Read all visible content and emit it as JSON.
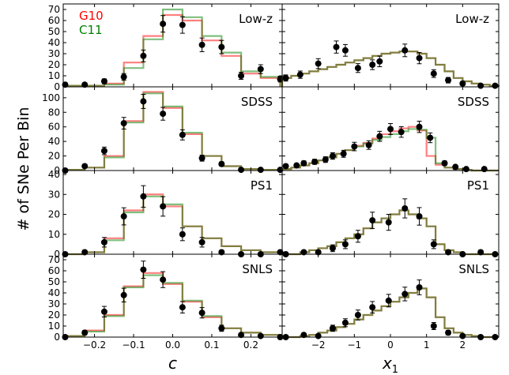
{
  "figure": {
    "ylabel": "# of SNe Per Bin",
    "colors": {
      "g10": "#ff0000",
      "c11": "#008000",
      "overlap": "#8a7a3a",
      "points": "#000000"
    }
  },
  "chart_data": [
    {
      "type": "histogram",
      "row": 0,
      "col": 0,
      "panel_label": "Low-z",
      "xlim": [
        -0.28,
        0.28
      ],
      "ylim": [
        0,
        75
      ],
      "yticks": [
        0,
        10,
        20,
        30,
        40,
        50,
        60,
        70
      ],
      "xticks": [
        -0.2,
        -0.1,
        0.0,
        0.1,
        0.2
      ],
      "xticklabels": [],
      "bin_edges": [
        -0.275,
        -0.225,
        -0.175,
        -0.125,
        -0.075,
        -0.025,
        0.025,
        0.075,
        0.125,
        0.175,
        0.225,
        0.275
      ],
      "series": [
        {
          "name": "G10",
          "values": [
            1,
            1,
            3,
            22,
            46,
            65,
            60,
            42,
            28,
            12,
            8
          ]
        },
        {
          "name": "C11",
          "values": [
            1,
            1,
            2,
            17,
            43,
            70,
            63,
            46,
            31,
            14,
            9
          ]
        }
      ],
      "legend": [
        "G10",
        "C11"
      ],
      "data": {
        "x": [
          -0.275,
          -0.225,
          -0.175,
          -0.125,
          -0.075,
          -0.025,
          0.025,
          0.075,
          0.125,
          0.175,
          0.225,
          0.275
        ],
        "y": [
          2,
          2,
          5,
          9,
          28,
          57,
          56,
          38,
          36,
          10,
          16,
          7
        ],
        "err": [
          1.5,
          1.5,
          2.2,
          3,
          5.3,
          7.5,
          7.5,
          6.2,
          6,
          3.2,
          4,
          2.6
        ]
      }
    },
    {
      "type": "histogram",
      "row": 0,
      "col": 1,
      "panel_label": "Low-z",
      "xlim": [
        -3,
        3
      ],
      "ylim": [
        0,
        75
      ],
      "yticks": [
        0,
        10,
        20,
        30,
        40,
        50,
        60,
        70
      ],
      "xticks": [
        -2,
        -1,
        0,
        1,
        2
      ],
      "xticklabels": [],
      "bin_edges": [
        -3,
        -2.75,
        -2.5,
        -2.25,
        -2,
        -1.75,
        -1.5,
        -1.25,
        -1,
        -0.75,
        -0.5,
        -0.25,
        0,
        0.25,
        0.5,
        0.75,
        1,
        1.25,
        1.5,
        1.75,
        2,
        2.25,
        2.5,
        2.75,
        3
      ],
      "series": [
        {
          "name": "G10",
          "values": [
            8,
            10,
            12,
            14,
            16,
            18,
            20,
            22,
            24,
            26,
            28,
            30,
            31,
            32,
            32,
            30,
            26,
            20,
            14,
            8,
            5,
            3,
            2,
            1
          ]
        },
        {
          "name": "C11",
          "values": [
            8,
            10,
            12,
            14,
            16,
            18,
            20,
            22,
            24,
            26,
            28,
            30,
            31,
            32,
            32,
            30,
            26,
            20,
            14,
            8,
            5,
            3,
            2,
            1
          ]
        }
      ],
      "data": {
        "x": [
          -2.9,
          -2.5,
          -2.0,
          -1.5,
          -1.25,
          -0.9,
          -0.5,
          -0.3,
          0.4,
          0.8,
          1.2,
          1.6,
          2.0,
          2.5,
          2.9
        ],
        "y": [
          8,
          11,
          21,
          36,
          33,
          17,
          20,
          23,
          33,
          26,
          12,
          6,
          3,
          1,
          1
        ],
        "err": [
          2.8,
          3.3,
          4.5,
          5.5,
          5.3,
          4,
          4.4,
          4.8,
          5.7,
          5.1,
          3.5,
          2.5,
          1.8,
          1,
          1
        ]
      }
    },
    {
      "type": "histogram",
      "row": 1,
      "col": 0,
      "panel_label": "SDSS",
      "xlim": [
        -0.28,
        0.28
      ],
      "ylim": [
        0,
        115
      ],
      "yticks": [
        0,
        20,
        40,
        60,
        80,
        100
      ],
      "xticks": [
        -0.2,
        -0.1,
        0.0,
        0.1,
        0.2
      ],
      "xticklabels": [],
      "bin_edges": [
        -0.275,
        -0.225,
        -0.175,
        -0.125,
        -0.075,
        -0.025,
        0.025,
        0.075,
        0.125,
        0.175,
        0.225,
        0.275
      ],
      "series": [
        {
          "name": "G10",
          "values": [
            1,
            4,
            20,
            68,
            108,
            86,
            50,
            20,
            6,
            2,
            1
          ]
        },
        {
          "name": "C11",
          "values": [
            1,
            4,
            18,
            66,
            106,
            88,
            52,
            20,
            6,
            2,
            1
          ]
        }
      ],
      "data": {
        "x": [
          -0.275,
          -0.225,
          -0.175,
          -0.125,
          -0.075,
          -0.025,
          0.025,
          0.075,
          0.125,
          0.175,
          0.225,
          0.275
        ],
        "y": [
          0,
          6,
          27,
          65,
          95,
          78,
          49,
          17,
          9,
          1,
          1,
          1
        ],
        "err": [
          0.8,
          2.5,
          5.2,
          8,
          9.7,
          8.8,
          7,
          4.1,
          3,
          1,
          1,
          1
        ]
      }
    },
    {
      "type": "histogram",
      "row": 1,
      "col": 1,
      "panel_label": "SDSS",
      "xlim": [
        -3,
        3
      ],
      "ylim": [
        0,
        115
      ],
      "yticks": [
        0,
        20,
        40,
        60,
        80,
        100
      ],
      "xticks": [
        -2,
        -1,
        0,
        1,
        2
      ],
      "xticklabels": [],
      "bin_edges": [
        -3,
        -2.75,
        -2.5,
        -2.25,
        -2,
        -1.75,
        -1.5,
        -1.25,
        -1,
        -0.75,
        -0.5,
        -0.25,
        0,
        0.25,
        0.5,
        0.75,
        1,
        1.25,
        1.5,
        1.75,
        2,
        2.25,
        2.5,
        2.75,
        3
      ],
      "series": [
        {
          "name": "G10",
          "values": [
            2,
            4,
            7,
            10,
            14,
            18,
            23,
            28,
            34,
            38,
            44,
            50,
            54,
            58,
            60,
            55,
            20,
            8,
            4,
            2,
            1,
            0,
            0,
            0
          ]
        },
        {
          "name": "C11",
          "values": [
            2,
            4,
            7,
            10,
            14,
            18,
            23,
            28,
            33,
            37,
            42,
            46,
            50,
            54,
            57,
            56,
            45,
            10,
            4,
            2,
            1,
            0,
            0,
            0
          ]
        }
      ],
      "data": {
        "x": [
          -2.9,
          -2.6,
          -2.4,
          -2.1,
          -1.8,
          -1.6,
          -1.3,
          -1.0,
          -0.6,
          -0.3,
          0.0,
          0.3,
          0.8,
          1.1,
          1.5,
          1.8,
          2.1,
          2.6
        ],
        "y": [
          6,
          7,
          10,
          12,
          15,
          20,
          23,
          33,
          35,
          47,
          57,
          53,
          60,
          45,
          10,
          5,
          2,
          2
        ],
        "err": [
          2.5,
          2.6,
          3.2,
          3.5,
          3.9,
          4.5,
          4.8,
          5.8,
          5.9,
          6.9,
          7.5,
          7.3,
          7.8,
          6.7,
          3.2,
          2.2,
          1.4,
          1.4
        ]
      }
    },
    {
      "type": "histogram",
      "row": 2,
      "col": 0,
      "panel_label": "PS1",
      "xlim": [
        -0.28,
        0.28
      ],
      "ylim": [
        0,
        42
      ],
      "yticks": [
        0,
        10,
        20,
        30,
        40
      ],
      "xticks": [
        -0.2,
        -0.1,
        0.0,
        0.1,
        0.2
      ],
      "xticklabels": [],
      "bin_edges": [
        -0.275,
        -0.225,
        -0.175,
        -0.125,
        -0.075,
        -0.025,
        0.025,
        0.075,
        0.125,
        0.175,
        0.225,
        0.275
      ],
      "series": [
        {
          "name": "G10",
          "values": [
            0,
            1,
            8,
            22,
            30,
            24,
            14,
            8,
            4,
            2,
            1
          ]
        },
        {
          "name": "C11",
          "values": [
            0,
            1,
            7,
            21,
            29,
            25,
            14,
            8,
            4,
            2,
            1
          ]
        }
      ],
      "data": {
        "x": [
          -0.275,
          -0.225,
          -0.175,
          -0.125,
          -0.075,
          -0.025,
          0.025,
          0.075,
          0.125,
          0.175,
          0.225,
          0.275
        ],
        "y": [
          0,
          1,
          6,
          19,
          29,
          24,
          10,
          6,
          1,
          0,
          0,
          1
        ],
        "err": [
          0.5,
          1,
          2.4,
          4.3,
          5.4,
          4.9,
          3.2,
          2.4,
          1,
          0.5,
          0.5,
          1
        ]
      }
    },
    {
      "type": "histogram",
      "row": 2,
      "col": 1,
      "panel_label": "PS1",
      "xlim": [
        -3,
        3
      ],
      "ylim": [
        0,
        42
      ],
      "yticks": [
        0,
        10,
        20,
        30,
        40
      ],
      "xticks": [
        -2,
        -1,
        0,
        1,
        2
      ],
      "xticklabels": [],
      "bin_edges": [
        -3,
        -2.75,
        -2.5,
        -2.25,
        -2,
        -1.75,
        -1.5,
        -1.25,
        -1,
        -0.75,
        -0.5,
        -0.25,
        0,
        0.25,
        0.5,
        0.75,
        1,
        1.25,
        1.5,
        1.75,
        2,
        2.25,
        2.5,
        2.75,
        3
      ],
      "series": [
        {
          "name": "G10",
          "values": [
            0,
            0,
            1,
            2,
            3,
            4,
            6,
            8,
            10,
            13,
            16,
            18,
            20,
            22,
            20,
            18,
            14,
            5,
            2,
            1,
            0,
            0,
            0,
            0
          ]
        },
        {
          "name": "C11",
          "values": [
            0,
            0,
            1,
            2,
            3,
            4,
            6,
            8,
            10,
            13,
            16,
            18,
            20,
            22,
            20,
            18,
            14,
            5,
            2,
            1,
            0,
            0,
            0,
            0
          ]
        }
      ],
      "data": {
        "x": [
          -2.9,
          -2.4,
          -2.0,
          -1.6,
          -1.25,
          -0.9,
          -0.5,
          -0.05,
          0.4,
          0.8,
          1.2,
          1.6,
          2.0,
          2.5,
          2.9
        ],
        "y": [
          0,
          1,
          1,
          3,
          5,
          9,
          17,
          16,
          23,
          19,
          5,
          1,
          0,
          1,
          0
        ],
        "err": [
          0.5,
          1,
          1,
          1.7,
          2.2,
          3,
          4.1,
          4,
          4.8,
          4.4,
          2.2,
          1,
          0.5,
          1,
          0.5
        ]
      }
    },
    {
      "type": "histogram",
      "row": 3,
      "col": 0,
      "panel_label": "SNLS",
      "xlim": [
        -0.28,
        0.28
      ],
      "ylim": [
        0,
        75
      ],
      "yticks": [
        0,
        10,
        20,
        30,
        40,
        50,
        60,
        70
      ],
      "xticks": [
        -0.2,
        -0.1,
        0.0,
        0.1,
        0.2
      ],
      "xticklabels": [
        "−0.2",
        "−0.1",
        "0.0",
        "0.1",
        "0.2"
      ],
      "xlabel": "c",
      "bin_edges": [
        -0.275,
        -0.225,
        -0.175,
        -0.125,
        -0.075,
        -0.025,
        0.025,
        0.075,
        0.125,
        0.175,
        0.225,
        0.275
      ],
      "series": [
        {
          "name": "G10",
          "values": [
            1,
            6,
            20,
            46,
            58,
            48,
            32,
            18,
            8,
            4,
            2
          ]
        },
        {
          "name": "C11",
          "values": [
            1,
            5,
            19,
            45,
            56,
            49,
            33,
            19,
            8,
            4,
            2
          ]
        }
      ],
      "data": {
        "x": [
          -0.275,
          -0.225,
          -0.175,
          -0.125,
          -0.075,
          -0.025,
          0.025,
          0.075,
          0.125,
          0.175,
          0.225,
          0.275
        ],
        "y": [
          0,
          4,
          23,
          38,
          61,
          52,
          27,
          22,
          8,
          2,
          1,
          0
        ],
        "err": [
          0.8,
          2,
          4.8,
          6.2,
          7.8,
          7.2,
          5.2,
          4.7,
          2.8,
          1.4,
          1,
          0.5
        ]
      }
    },
    {
      "type": "histogram",
      "row": 3,
      "col": 1,
      "panel_label": "SNLS",
      "xlim": [
        -3,
        3
      ],
      "ylim": [
        0,
        75
      ],
      "yticks": [
        0,
        10,
        20,
        30,
        40,
        50,
        60,
        70
      ],
      "xticks": [
        -2,
        -1,
        0,
        1,
        2
      ],
      "xticklabels": [
        "−2",
        "−1",
        "0",
        "1",
        "2"
      ],
      "xlabel": "x1",
      "bin_edges": [
        -3,
        -2.75,
        -2.5,
        -2.25,
        -2,
        -1.75,
        -1.5,
        -1.25,
        -1,
        -0.75,
        -0.5,
        -0.25,
        0,
        0.25,
        0.5,
        0.75,
        1,
        1.25,
        1.5,
        1.75,
        2,
        2.25,
        2.5,
        2.75,
        3
      ],
      "series": [
        {
          "name": "G10",
          "values": [
            0,
            0,
            1,
            2,
            4,
            6,
            9,
            12,
            16,
            20,
            24,
            28,
            32,
            36,
            40,
            44,
            36,
            18,
            8,
            4,
            2,
            1,
            0,
            0
          ]
        },
        {
          "name": "C11",
          "values": [
            0,
            0,
            1,
            2,
            4,
            6,
            9,
            12,
            16,
            20,
            24,
            28,
            32,
            36,
            40,
            44,
            36,
            18,
            8,
            4,
            2,
            1,
            0,
            0
          ]
        }
      ],
      "data": {
        "x": [
          -2.9,
          -2.4,
          -2.0,
          -1.6,
          -1.25,
          -0.9,
          -0.5,
          -0.05,
          0.4,
          0.8,
          1.2,
          1.6,
          2.0,
          2.5,
          2.9
        ],
        "y": [
          0,
          2,
          1,
          8,
          13,
          20,
          27,
          33,
          39,
          45,
          10,
          4,
          1,
          0,
          0
        ],
        "err": [
          0.5,
          1.4,
          1,
          2.8,
          3.6,
          4.5,
          5.2,
          5.7,
          6.2,
          6.7,
          3.2,
          2,
          1,
          0.5,
          0.5
        ]
      }
    }
  ]
}
